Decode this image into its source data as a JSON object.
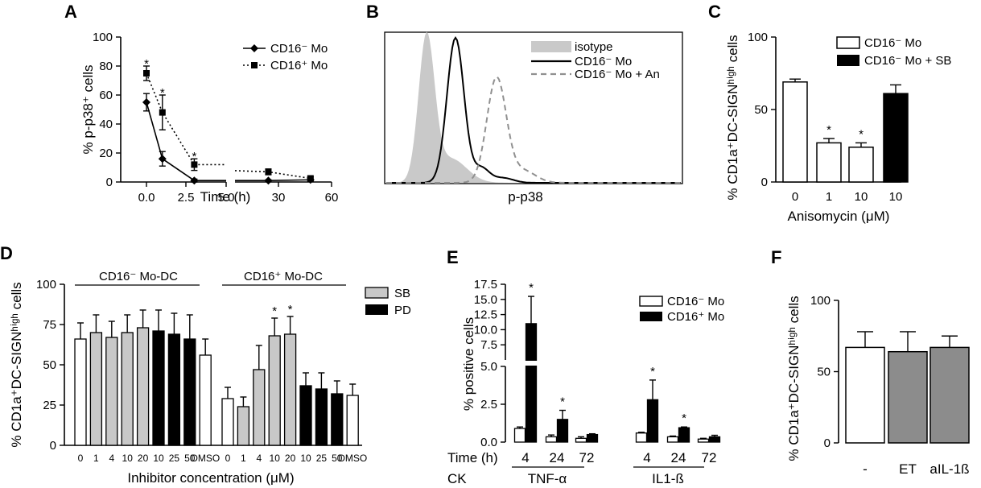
{
  "panel_labels": [
    "A",
    "B",
    "C",
    "D",
    "E",
    "F"
  ],
  "chart_data": [
    {
      "panel": "A",
      "type": "line",
      "xlabel": "Time (h)",
      "ylabel": "% p-p38⁺ cells",
      "ylim": [
        0,
        100
      ],
      "yticks": [
        "0",
        "20",
        "40",
        "60",
        "80",
        "100"
      ],
      "xticks": [
        "0.0",
        "2.5",
        "5.0",
        "30",
        "60"
      ],
      "x_axis_break": true,
      "legend_position": "top-right",
      "series": [
        {
          "name": "CD16⁻ Mo",
          "style": "solid",
          "marker": "diamond",
          "x": [
            0,
            1,
            3,
            24,
            48
          ],
          "y": [
            55,
            16,
            1,
            1,
            1.5
          ],
          "err": [
            6,
            5,
            1,
            0.5,
            0.5
          ]
        },
        {
          "name": "CD16⁺ Mo",
          "style": "dotted",
          "marker": "square",
          "x": [
            0,
            1,
            3,
            24,
            48
          ],
          "y": [
            75,
            48,
            12,
            7,
            2.5
          ],
          "err": [
            5,
            12,
            4,
            2,
            1
          ]
        }
      ],
      "significance": [
        {
          "x": 0,
          "y": 80,
          "label": "*"
        },
        {
          "x": 1,
          "y": 60,
          "label": "*"
        },
        {
          "x": 3,
          "y": 16,
          "label": "*"
        }
      ]
    },
    {
      "panel": "B",
      "type": "area",
      "xlabel": "p-p38",
      "legend_position": "top-right",
      "series": [
        {
          "name": "isotype",
          "style": "filled-gray"
        },
        {
          "name": "CD16⁻ Mo",
          "style": "solid-black"
        },
        {
          "name": "CD16⁻ Mo + An",
          "style": "dashed-gray"
        }
      ]
    },
    {
      "panel": "C",
      "type": "bar",
      "xlabel": "Anisomycin (μM)",
      "ylabel": "% CD1a⁺DC-SIGNʰⁱᵍʰ cells",
      "ylim": [
        0,
        100
      ],
      "yticks": [
        "0",
        "50",
        "100"
      ],
      "categories": [
        "0",
        "1",
        "10",
        "10"
      ],
      "values": [
        69,
        27,
        24,
        61
      ],
      "errors": [
        2,
        3,
        3,
        6
      ],
      "bar_groups": [
        "CD16⁻ Mo",
        "CD16⁻ Mo",
        "CD16⁻ Mo",
        "CD16⁻ Mo + SB"
      ],
      "legend": [
        "CD16⁻ Mo",
        "CD16⁻ Mo + SB"
      ],
      "legend_position": "top-right",
      "significance": [
        {
          "index": 1,
          "label": "*"
        },
        {
          "index": 2,
          "label": "*"
        }
      ]
    },
    {
      "panel": "D",
      "type": "bar",
      "xlabel": "Inhibitor concentration (μM)",
      "ylabel": "% CD1a⁺DC-SIGNʰⁱᵍʰ cells",
      "ylim": [
        0,
        100
      ],
      "yticks": [
        "0",
        "25",
        "50",
        "75",
        "100"
      ],
      "groups": [
        "CD16⁻ Mo-DC",
        "CD16⁺ Mo-DC"
      ],
      "legend": [
        "SB",
        "PD"
      ],
      "legend_position": "right",
      "categories": [
        "0",
        "1",
        "4",
        "10",
        "20",
        "10",
        "25",
        "50",
        "DMSO"
      ],
      "bar_types": [
        "none",
        "SB",
        "SB",
        "SB",
        "SB",
        "PD",
        "PD",
        "PD",
        "none"
      ],
      "series": [
        {
          "name": "CD16⁻ Mo-DC",
          "values": [
            66,
            70,
            67,
            70,
            73,
            71,
            69,
            66,
            56
          ],
          "errors": [
            10,
            11,
            10,
            11,
            11,
            13,
            13,
            15,
            10
          ]
        },
        {
          "name": "CD16⁺ Mo-DC",
          "values": [
            29,
            24,
            47,
            68,
            69,
            37,
            35,
            32,
            31
          ],
          "errors": [
            7,
            6,
            15,
            11,
            11,
            8,
            10,
            8,
            7
          ]
        }
      ],
      "significance": [
        {
          "group": 1,
          "index": 3,
          "label": "*"
        },
        {
          "group": 1,
          "index": 4,
          "label": "*"
        }
      ]
    },
    {
      "panel": "E",
      "type": "bar",
      "ylabel": "% positive cells",
      "y_axis_break": true,
      "yticks": [
        "0.0",
        "2.5",
        "5.0",
        "7.5",
        "10.0",
        "12.5",
        "15.0",
        "17.5"
      ],
      "legend": [
        "CD16⁻ Mo",
        "CD16⁺ Mo"
      ],
      "legend_position": "top-right",
      "row_labels": [
        "Time (h)",
        "CK"
      ],
      "times": [
        "4",
        "24",
        "72"
      ],
      "cytokines": [
        "TNF-α",
        "IL1-ß"
      ],
      "series": [
        {
          "name": "CD16⁻ Mo",
          "values": [
            0.9,
            0.35,
            0.25,
            0.6,
            0.35,
            0.2
          ],
          "errors": [
            0.1,
            0.12,
            0.1,
            0.05,
            0.05,
            0.05
          ]
        },
        {
          "name": "CD16⁺ Mo",
          "values": [
            11,
            1.5,
            0.5,
            2.8,
            0.95,
            0.35
          ],
          "errors": [
            4.5,
            0.6,
            0.05,
            1.3,
            0.05,
            0.1
          ]
        }
      ],
      "significance": [
        {
          "index": 0,
          "label": "*"
        },
        {
          "index": 1,
          "label": "*"
        },
        {
          "index": 3,
          "label": "*"
        },
        {
          "index": 4,
          "label": "*"
        }
      ]
    },
    {
      "panel": "F",
      "type": "bar",
      "ylabel": "% CD1a⁺DC-SIGNʰⁱᵍʰ cells",
      "ylim": [
        0,
        100
      ],
      "yticks": [
        "0",
        "50",
        "100"
      ],
      "categories": [
        "-",
        "ET",
        "aIL-1ß"
      ],
      "values": [
        67,
        64,
        67
      ],
      "errors": [
        11,
        14,
        8
      ],
      "colors": [
        "#ffffff",
        "#8c8c8c",
        "#8c8c8c"
      ]
    }
  ]
}
